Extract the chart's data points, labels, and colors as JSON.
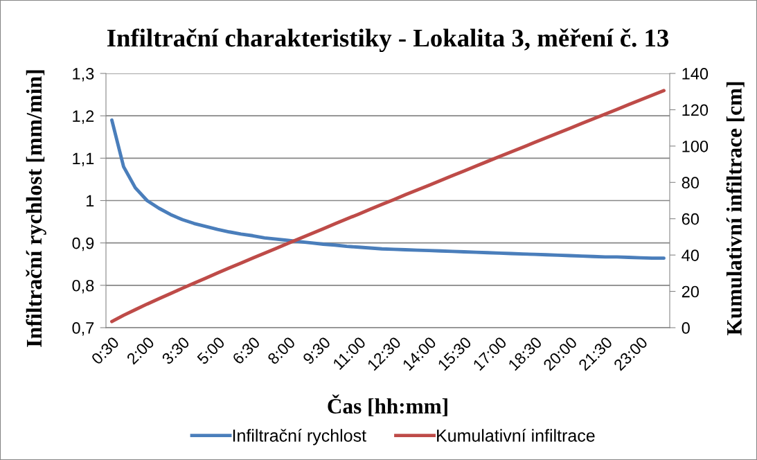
{
  "chart_data": {
    "type": "line",
    "title": "Infiltrační charakteristiky - Lokalita 3, měření č. 13",
    "xlabel": "Čas [hh:mm]",
    "ylabel": "Infiltrační rychlost [mm/min]",
    "y2label": "Kumulativní infiltrace [cm]",
    "categories": [
      "0:30",
      null,
      null,
      "2:00",
      null,
      null,
      "3:30",
      null,
      null,
      "5:00",
      null,
      null,
      "6:30",
      null,
      null,
      "8:00",
      null,
      null,
      "9:30",
      null,
      null,
      "11:00",
      null,
      null,
      "12:30",
      null,
      null,
      "14:00",
      null,
      null,
      "15:30",
      null,
      null,
      "17:00",
      null,
      null,
      "18:30",
      null,
      null,
      "20:00",
      null,
      null,
      "21:30",
      null,
      null,
      "23:00",
      null,
      null
    ],
    "series": [
      {
        "name": "Infiltrační rychlost",
        "color": "#4a7ebb",
        "values": [
          1.19,
          1.08,
          1.03,
          1.0,
          0.982,
          0.967,
          0.955,
          0.946,
          0.939,
          0.932,
          0.926,
          0.921,
          0.917,
          0.912,
          0.909,
          0.906,
          0.903,
          0.9,
          0.897,
          0.895,
          0.892,
          0.89,
          0.888,
          0.886,
          0.885,
          0.884,
          0.883,
          0.882,
          0.881,
          0.88,
          0.879,
          0.878,
          0.877,
          0.876,
          0.875,
          0.874,
          0.873,
          0.872,
          0.871,
          0.87,
          0.869,
          0.868,
          0.867,
          0.867,
          0.866,
          0.865,
          0.864,
          0.864
        ]
      },
      {
        "name": "Kumulativní infiltrace",
        "color": "#be4b48",
        "axis": "y2",
        "values": [
          3.4,
          6.8,
          9.9,
          13.0,
          15.9,
          18.8,
          21.7,
          24.5,
          27.3,
          30.1,
          32.9,
          35.6,
          38.3,
          41.0,
          43.7,
          46.4,
          49.1,
          51.8,
          54.5,
          57.2,
          59.9,
          62.5,
          65.2,
          67.9,
          70.5,
          73.2,
          75.8,
          78.4,
          81.1,
          83.7,
          86.3,
          89.0,
          91.6,
          94.2,
          96.8,
          99.4,
          102.0,
          104.6,
          107.2,
          109.8,
          112.4,
          115.0,
          117.6,
          120.2,
          122.8,
          125.4,
          128.0,
          130.6
        ]
      }
    ],
    "ylim": [
      0.7,
      1.3
    ],
    "yticks": [
      {
        "value": 0.7,
        "label": "0,7"
      },
      {
        "value": 0.8,
        "label": "0,8"
      },
      {
        "value": 0.9,
        "label": "0,9"
      },
      1,
      {
        "value": 1.1,
        "label": "1,1"
      },
      {
        "value": 1.2,
        "label": "1,2"
      },
      {
        "value": 1.3,
        "label": "1,3"
      }
    ],
    "y2lim": [
      0,
      140
    ],
    "y2ticks": [
      0,
      20,
      40,
      60,
      80,
      100,
      120,
      140
    ],
    "grid": "y",
    "legend": "bottom",
    "line_style": "solid"
  }
}
